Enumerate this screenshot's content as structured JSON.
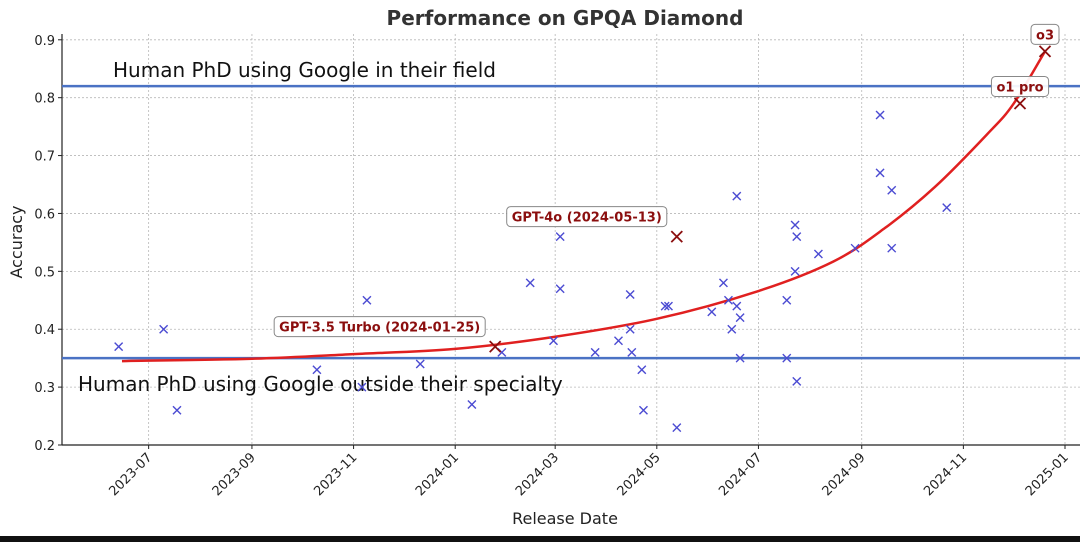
{
  "chart_data": {
    "type": "scatter",
    "title": "Performance on GPQA Diamond",
    "xlabel": "Release Date",
    "ylabel": "Accuracy",
    "ylim": [
      0.2,
      0.91
    ],
    "xlim": [
      "2023-05-10",
      "2025-01-10"
    ],
    "grid": true,
    "x_ticks": [
      "2023-07",
      "2023-09",
      "2023-11",
      "2024-01",
      "2024-03",
      "2024-05",
      "2024-07",
      "2024-09",
      "2024-11",
      "2025-01"
    ],
    "y_ticks": [
      "0.2",
      "0.3",
      "0.4",
      "0.5",
      "0.6",
      "0.7",
      "0.8",
      "0.9"
    ],
    "colors": {
      "points": "#4b4bd2",
      "highlight": "#8b0e0e",
      "trend": "#e02020",
      "reference": "#4a72c4",
      "label_text": "#8b0e0e"
    },
    "reference_lines": [
      {
        "label": "Human PhD using Google in their field",
        "y": 0.82
      },
      {
        "label": "Human PhD using Google outside their specialty",
        "y": 0.35
      }
    ],
    "series": [
      {
        "name": "models",
        "points": [
          {
            "date": "2023-06-13",
            "y": 0.37
          },
          {
            "date": "2023-07-10",
            "y": 0.4
          },
          {
            "date": "2023-07-18",
            "y": 0.26
          },
          {
            "date": "2023-10-10",
            "y": 0.33
          },
          {
            "date": "2023-11-06",
            "y": 0.3
          },
          {
            "date": "2023-11-09",
            "y": 0.45
          },
          {
            "date": "2023-12-11",
            "y": 0.34
          },
          {
            "date": "2024-01-11",
            "y": 0.27
          },
          {
            "date": "2024-01-29",
            "y": 0.36
          },
          {
            "date": "2024-02-15",
            "y": 0.48
          },
          {
            "date": "2024-02-29",
            "y": 0.38
          },
          {
            "date": "2024-03-04",
            "y": 0.56
          },
          {
            "date": "2024-03-04",
            "y": 0.47
          },
          {
            "date": "2024-03-25",
            "y": 0.36
          },
          {
            "date": "2024-04-08",
            "y": 0.38
          },
          {
            "date": "2024-04-15",
            "y": 0.46
          },
          {
            "date": "2024-04-15",
            "y": 0.4
          },
          {
            "date": "2024-04-16",
            "y": 0.36
          },
          {
            "date": "2024-04-22",
            "y": 0.33
          },
          {
            "date": "2024-04-23",
            "y": 0.26
          },
          {
            "date": "2024-05-06",
            "y": 0.44
          },
          {
            "date": "2024-05-08",
            "y": 0.44
          },
          {
            "date": "2024-05-13",
            "y": 0.23
          },
          {
            "date": "2024-06-03",
            "y": 0.43
          },
          {
            "date": "2024-06-10",
            "y": 0.48
          },
          {
            "date": "2024-06-13",
            "y": 0.45
          },
          {
            "date": "2024-06-15",
            "y": 0.4
          },
          {
            "date": "2024-06-18",
            "y": 0.44
          },
          {
            "date": "2024-06-18",
            "y": 0.63
          },
          {
            "date": "2024-06-20",
            "y": 0.42
          },
          {
            "date": "2024-06-20",
            "y": 0.35
          },
          {
            "date": "2024-07-18",
            "y": 0.45
          },
          {
            "date": "2024-07-18",
            "y": 0.35
          },
          {
            "date": "2024-07-23",
            "y": 0.5
          },
          {
            "date": "2024-07-23",
            "y": 0.58
          },
          {
            "date": "2024-07-24",
            "y": 0.56
          },
          {
            "date": "2024-07-24",
            "y": 0.31
          },
          {
            "date": "2024-08-06",
            "y": 0.53
          },
          {
            "date": "2024-08-28",
            "y": 0.54
          },
          {
            "date": "2024-09-12",
            "y": 0.77
          },
          {
            "date": "2024-09-12",
            "y": 0.67
          },
          {
            "date": "2024-09-19",
            "y": 0.64
          },
          {
            "date": "2024-09-19",
            "y": 0.54
          },
          {
            "date": "2024-10-22",
            "y": 0.61
          }
        ]
      }
    ],
    "highlighted": [
      {
        "label": "GPT-3.5 Turbo (2024-01-25)",
        "date": "2024-01-25",
        "y": 0.37,
        "label_anchor": "upper-left"
      },
      {
        "label": "GPT-4o (2024-05-13)",
        "date": "2024-05-13",
        "y": 0.56,
        "label_anchor": "upper-left"
      },
      {
        "label": "o1 pro",
        "date": "2024-12-05",
        "y": 0.79,
        "label_anchor": "upper-center"
      },
      {
        "label": "o3",
        "date": "2024-12-20",
        "y": 0.88,
        "label_anchor": "upper-center"
      }
    ],
    "trend": {
      "name": "exponential fit",
      "points": [
        {
          "date": "2023-06-15",
          "y": 0.345
        },
        {
          "date": "2023-09-01",
          "y": 0.349
        },
        {
          "date": "2023-11-01",
          "y": 0.357
        },
        {
          "date": "2024-01-01",
          "y": 0.366
        },
        {
          "date": "2024-03-01",
          "y": 0.387
        },
        {
          "date": "2024-05-01",
          "y": 0.418
        },
        {
          "date": "2024-07-01",
          "y": 0.466
        },
        {
          "date": "2024-08-15",
          "y": 0.517
        },
        {
          "date": "2024-09-15",
          "y": 0.575
        },
        {
          "date": "2024-10-15",
          "y": 0.646
        },
        {
          "date": "2024-11-15",
          "y": 0.736
        },
        {
          "date": "2024-12-01",
          "y": 0.789
        },
        {
          "date": "2024-12-20",
          "y": 0.88
        }
      ]
    }
  }
}
